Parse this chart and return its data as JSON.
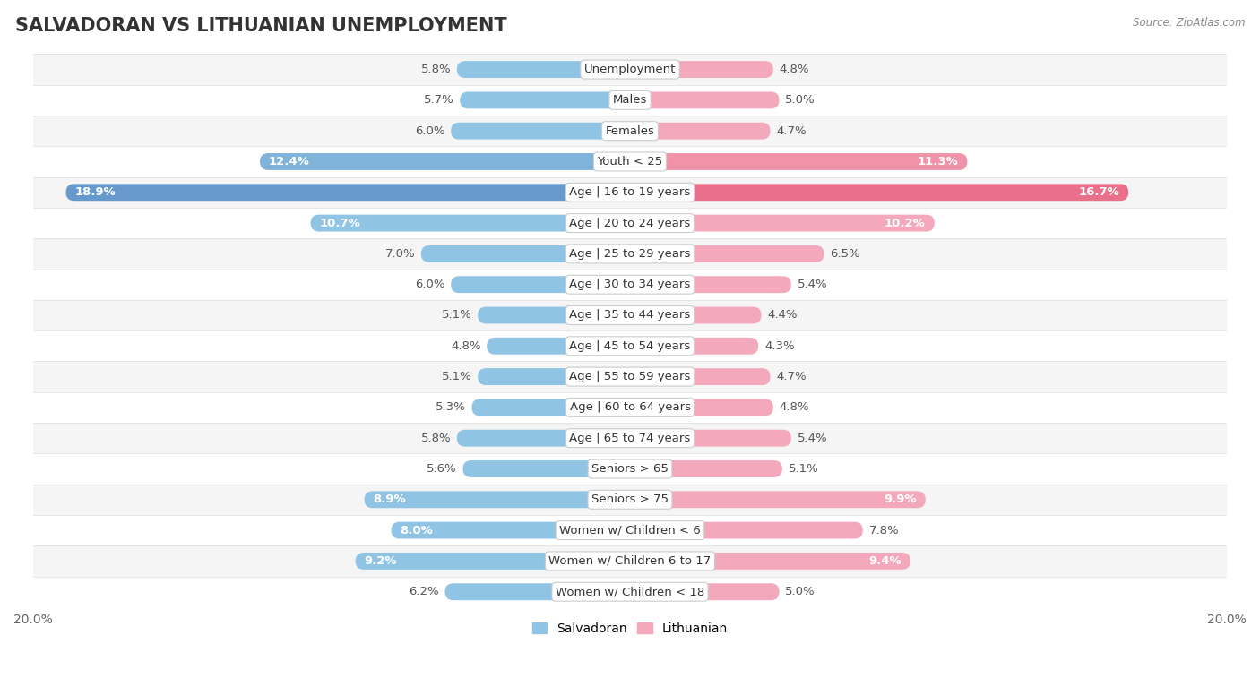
{
  "title": "SALVADORAN VS LITHUANIAN UNEMPLOYMENT",
  "source": "Source: ZipAtlas.com",
  "categories": [
    "Unemployment",
    "Males",
    "Females",
    "Youth < 25",
    "Age | 16 to 19 years",
    "Age | 20 to 24 years",
    "Age | 25 to 29 years",
    "Age | 30 to 34 years",
    "Age | 35 to 44 years",
    "Age | 45 to 54 years",
    "Age | 55 to 59 years",
    "Age | 60 to 64 years",
    "Age | 65 to 74 years",
    "Seniors > 65",
    "Seniors > 75",
    "Women w/ Children < 6",
    "Women w/ Children 6 to 17",
    "Women w/ Children < 18"
  ],
  "salvadoran": [
    5.8,
    5.7,
    6.0,
    12.4,
    18.9,
    10.7,
    7.0,
    6.0,
    5.1,
    4.8,
    5.1,
    5.3,
    5.8,
    5.6,
    8.9,
    8.0,
    9.2,
    6.2
  ],
  "lithuanian": [
    4.8,
    5.0,
    4.7,
    11.3,
    16.7,
    10.2,
    6.5,
    5.4,
    4.4,
    4.3,
    4.7,
    4.8,
    5.4,
    5.1,
    9.9,
    7.8,
    9.4,
    5.0
  ],
  "sal_colors": [
    "#90c4e4",
    "#90c4e4",
    "#90c4e4",
    "#7fb3d9",
    "#6699cc",
    "#90c4e4",
    "#90c4e4",
    "#90c4e4",
    "#90c4e4",
    "#90c4e4",
    "#90c4e4",
    "#90c4e4",
    "#90c4e4",
    "#90c4e4",
    "#90c4e4",
    "#90c4e4",
    "#90c4e4",
    "#90c4e4"
  ],
  "lit_colors": [
    "#f4a8bb",
    "#f4a8bb",
    "#f4a8bb",
    "#f093a8",
    "#e8708a",
    "#f4a8bb",
    "#f4a8bb",
    "#f4a8bb",
    "#f4a8bb",
    "#f4a8bb",
    "#f4a8bb",
    "#f4a8bb",
    "#f4a8bb",
    "#f4a8bb",
    "#f4a8bb",
    "#f4a8bb",
    "#f4a8bb",
    "#f4a8bb"
  ],
  "row_bg_even": "#f5f5f5",
  "row_bg_odd": "#ffffff",
  "row_separator": "#dddddd",
  "max_val": 20.0,
  "bar_height": 0.55,
  "background_color": "#ffffff",
  "title_fontsize": 15,
  "label_fontsize": 9.5,
  "tick_fontsize": 10,
  "inside_label_threshold": 8.0,
  "sal_legend_color": "#90c4e4",
  "lit_legend_color": "#f4a8bb"
}
